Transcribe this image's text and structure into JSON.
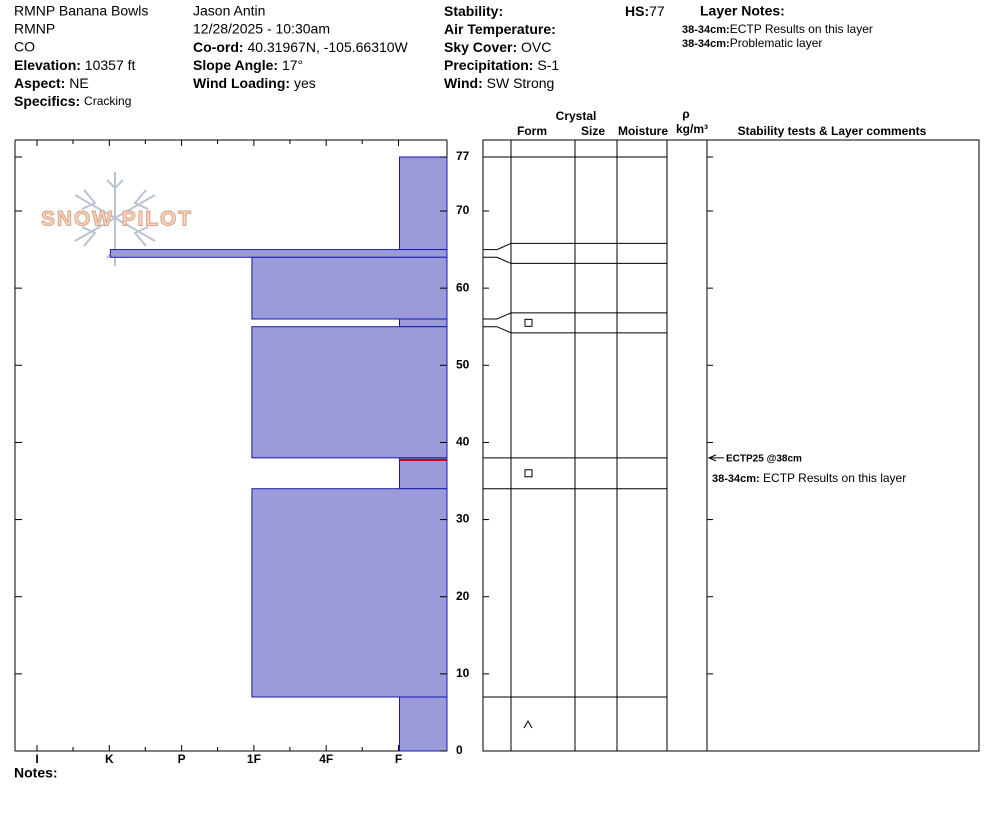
{
  "header": {
    "site": "RMNP Banana Bowls",
    "area": "RMNP",
    "state": "CO",
    "observer": "Jason Antin",
    "datetime": "12/28/2025 - 10:30am",
    "left_fields": [
      {
        "label": "Elevation:",
        "value": "10357 ft"
      },
      {
        "label": "Aspect:",
        "value": "NE"
      },
      {
        "label": "Specifics:",
        "value": "Cracking"
      }
    ],
    "middle_fields": [
      {
        "label": "Co-ord:",
        "value": "40.31967N, -105.66310W"
      },
      {
        "label": "Slope Angle:",
        "value": "17°"
      },
      {
        "label": "Wind Loading:",
        "value": "yes"
      }
    ],
    "right_fields": [
      {
        "label": "Stability:"
      },
      {
        "label": "Air Temperature:"
      },
      {
        "label": "Sky Cover:",
        "value": "OVC"
      },
      {
        "label": "Precipitation:",
        "value": "S-1"
      },
      {
        "label": "Wind:",
        "value": "SW Strong"
      }
    ],
    "hs": {
      "label": "HS:",
      "value": 77
    },
    "layer_notes": {
      "title": "Layer Notes:",
      "items": [
        {
          "depth": "38-34cm:",
          "text": "ECTP Results on this layer"
        },
        {
          "depth": "38-34cm:",
          "text": "Problematic layer"
        }
      ]
    }
  },
  "chart_data": {
    "type": "snow-profile",
    "logo": "SNOW PILOT",
    "hardness_categories": [
      "I",
      "K",
      "P",
      "1F",
      "4F",
      "F"
    ],
    "ylim": [
      0,
      77
    ],
    "yticks": [
      0,
      10,
      20,
      30,
      40,
      50,
      60,
      70,
      77
    ],
    "layers": [
      {
        "top": 77,
        "bottom": 65,
        "hardness": "F"
      },
      {
        "top": 65,
        "bottom": 64,
        "hardness": "K"
      },
      {
        "top": 64,
        "bottom": 56,
        "hardness": "1F"
      },
      {
        "top": 56,
        "bottom": 55,
        "hardness": "F"
      },
      {
        "top": 55,
        "bottom": 38,
        "hardness": "1F"
      },
      {
        "top": 38,
        "bottom": 34,
        "hardness": "F",
        "problematic": true
      },
      {
        "top": 34,
        "bottom": 7,
        "hardness": "1F"
      },
      {
        "top": 7,
        "bottom": 0,
        "hardness": "F"
      }
    ],
    "columns": {
      "crystal": "Crystal",
      "form": "Form",
      "size": "Size",
      "moisture": "Moisture",
      "density": "ρ",
      "density_unit": "kg/m³",
      "comments": "Stability tests & Layer comments"
    },
    "stability_test": {
      "label": "ECTP25 @38cm",
      "depth": 38
    },
    "layer_comment": {
      "depth": "38-34cm:",
      "text": "ECTP Results on this layer"
    },
    "notes_label": "Notes:"
  }
}
